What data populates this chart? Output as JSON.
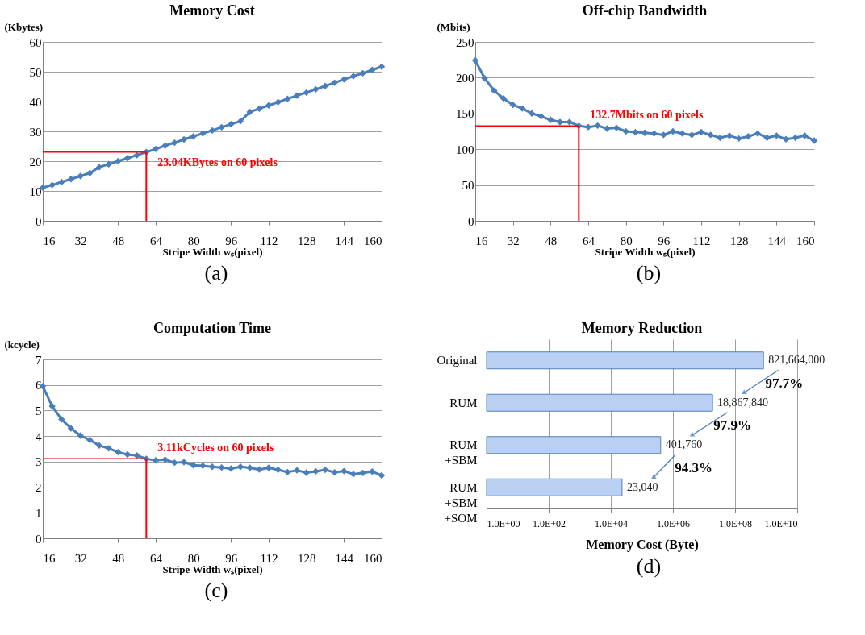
{
  "chart_data": [
    {
      "type": "line",
      "title": "Memory Cost",
      "xlabel": "Stripe Width wₛ(pixel)",
      "ylabel": "(Kbytes)",
      "color": "#4a7ebb",
      "marker": "diamond",
      "grid": "y",
      "xlim": [
        16,
        160
      ],
      "xticks": [
        16,
        32,
        48,
        64,
        80,
        96,
        112,
        128,
        144,
        160
      ],
      "ylim": [
        0,
        60
      ],
      "yticks": [
        0,
        10,
        20,
        30,
        40,
        50,
        60
      ],
      "x": [
        16,
        20,
        24,
        28,
        32,
        36,
        40,
        44,
        48,
        52,
        56,
        60,
        64,
        68,
        72,
        76,
        80,
        84,
        88,
        92,
        96,
        100,
        104,
        108,
        112,
        116,
        120,
        124,
        128,
        132,
        136,
        140,
        144,
        148,
        152,
        156,
        160
      ],
      "values": [
        11.1,
        12,
        13,
        14,
        15,
        16,
        18,
        19,
        20,
        21,
        22,
        23.04,
        24.1,
        25.2,
        26.2,
        27.3,
        28.3,
        29.3,
        30.3,
        31.4,
        32.4,
        33.4,
        36.5,
        37.6,
        38.7,
        39.8,
        40.9,
        42,
        43,
        44.1,
        45.2,
        46.3,
        47.4,
        48.5,
        49.5,
        50.6,
        51.7
      ],
      "ref_lines": [
        {
          "axis": "x",
          "value": 60,
          "color": "#ff0000"
        },
        {
          "axis": "y",
          "value": 23.04,
          "color": "#ff0000"
        }
      ],
      "annotations": [
        "23.04KBytes on 60 pixels",
        "(a)"
      ]
    },
    {
      "type": "line",
      "title": "Off-chip Bandwidth",
      "xlabel": "Stripe Width wₛ(pixel)",
      "ylabel": "(Mbits)",
      "color": "#4a7ebb",
      "marker": "diamond",
      "grid": "y",
      "xlim": [
        16,
        160
      ],
      "xticks": [
        16,
        32,
        48,
        64,
        80,
        96,
        112,
        128,
        144,
        160
      ],
      "ylim": [
        0,
        250
      ],
      "yticks": [
        0,
        50,
        100,
        150,
        200,
        250
      ],
      "x": [
        16,
        20,
        24,
        28,
        32,
        36,
        40,
        44,
        48,
        52,
        56,
        60,
        64,
        68,
        72,
        76,
        80,
        84,
        88,
        92,
        96,
        100,
        104,
        108,
        112,
        116,
        120,
        124,
        128,
        132,
        136,
        140,
        144,
        148,
        152,
        156,
        160
      ],
      "values": [
        224,
        199,
        182,
        171,
        162,
        157,
        150,
        146,
        141,
        138,
        138,
        132.7,
        131,
        133,
        129,
        130,
        125,
        124,
        123,
        122,
        120,
        125,
        122,
        120,
        124,
        120,
        116,
        119,
        115,
        118,
        122,
        116,
        119,
        114,
        116,
        119,
        112
      ],
      "ref_lines": [
        {
          "axis": "x",
          "value": 60,
          "color": "#ff0000"
        },
        {
          "axis": "y",
          "value": 132.7,
          "color": "#ff0000"
        }
      ],
      "annotations": [
        "132.7Mbits on 60 pixels",
        "(b)"
      ]
    },
    {
      "type": "line",
      "title": "Computation Time",
      "xlabel": "Stripe Width wₛ(pixel)",
      "ylabel": "(kcycle)",
      "color": "#4a7ebb",
      "marker": "diamond",
      "grid": "y",
      "xlim": [
        16,
        160
      ],
      "xticks": [
        16,
        32,
        48,
        64,
        80,
        96,
        112,
        128,
        144,
        160
      ],
      "ylim": [
        0,
        7
      ],
      "yticks": [
        0,
        1,
        2,
        3,
        4,
        5,
        6,
        7
      ],
      "x": [
        16,
        20,
        24,
        28,
        32,
        36,
        40,
        44,
        48,
        52,
        56,
        60,
        64,
        68,
        72,
        76,
        80,
        84,
        88,
        92,
        96,
        100,
        104,
        108,
        112,
        116,
        120,
        124,
        128,
        132,
        136,
        140,
        144,
        148,
        152,
        156,
        160
      ],
      "values": [
        5.95,
        5.17,
        4.65,
        4.3,
        4.02,
        3.85,
        3.63,
        3.52,
        3.37,
        3.28,
        3.24,
        3.11,
        3.05,
        3.08,
        2.96,
        2.98,
        2.86,
        2.84,
        2.8,
        2.77,
        2.73,
        2.8,
        2.76,
        2.69,
        2.76,
        2.68,
        2.59,
        2.66,
        2.57,
        2.62,
        2.68,
        2.58,
        2.63,
        2.51,
        2.56,
        2.61,
        2.46
      ],
      "ref_lines": [
        {
          "axis": "x",
          "value": 60,
          "color": "#ff0000"
        },
        {
          "axis": "y",
          "value": 3.11,
          "color": "#ff0000"
        }
      ],
      "annotations": [
        "3.11kCycles on 60 pixels",
        "(c)"
      ]
    },
    {
      "type": "bar",
      "orientation": "horizontal",
      "title": "Memory Reduction",
      "xlabel": "Memory Cost (Byte)",
      "log": "x",
      "grid": "x",
      "color": "#b9d0f2",
      "categories": [
        "Original",
        "RUM",
        "RUM\n+SBM",
        "RUM\n+SBM\n+SOM"
      ],
      "values": [
        821664000,
        18867840,
        401760,
        23040
      ],
      "xlim": [
        1,
        10000000000
      ],
      "xticks": [
        {
          "value": 1,
          "label": "1.0E+00"
        },
        {
          "value": 100,
          "label": "1.0E+02"
        },
        {
          "value": 10000,
          "label": "1.0E+04"
        },
        {
          "value": 1000000,
          "label": "1.0E+06"
        },
        {
          "value": 100000000,
          "label": "1.0E+08"
        },
        {
          "value": 10000000000,
          "label": "1.0E+10"
        }
      ],
      "value_labels": [
        "821,664,000",
        "18,867,840",
        "401,760",
        "23,040"
      ],
      "annotations": [
        "97.7%",
        "97.9%",
        "94.3%",
        "(d)"
      ]
    }
  ]
}
